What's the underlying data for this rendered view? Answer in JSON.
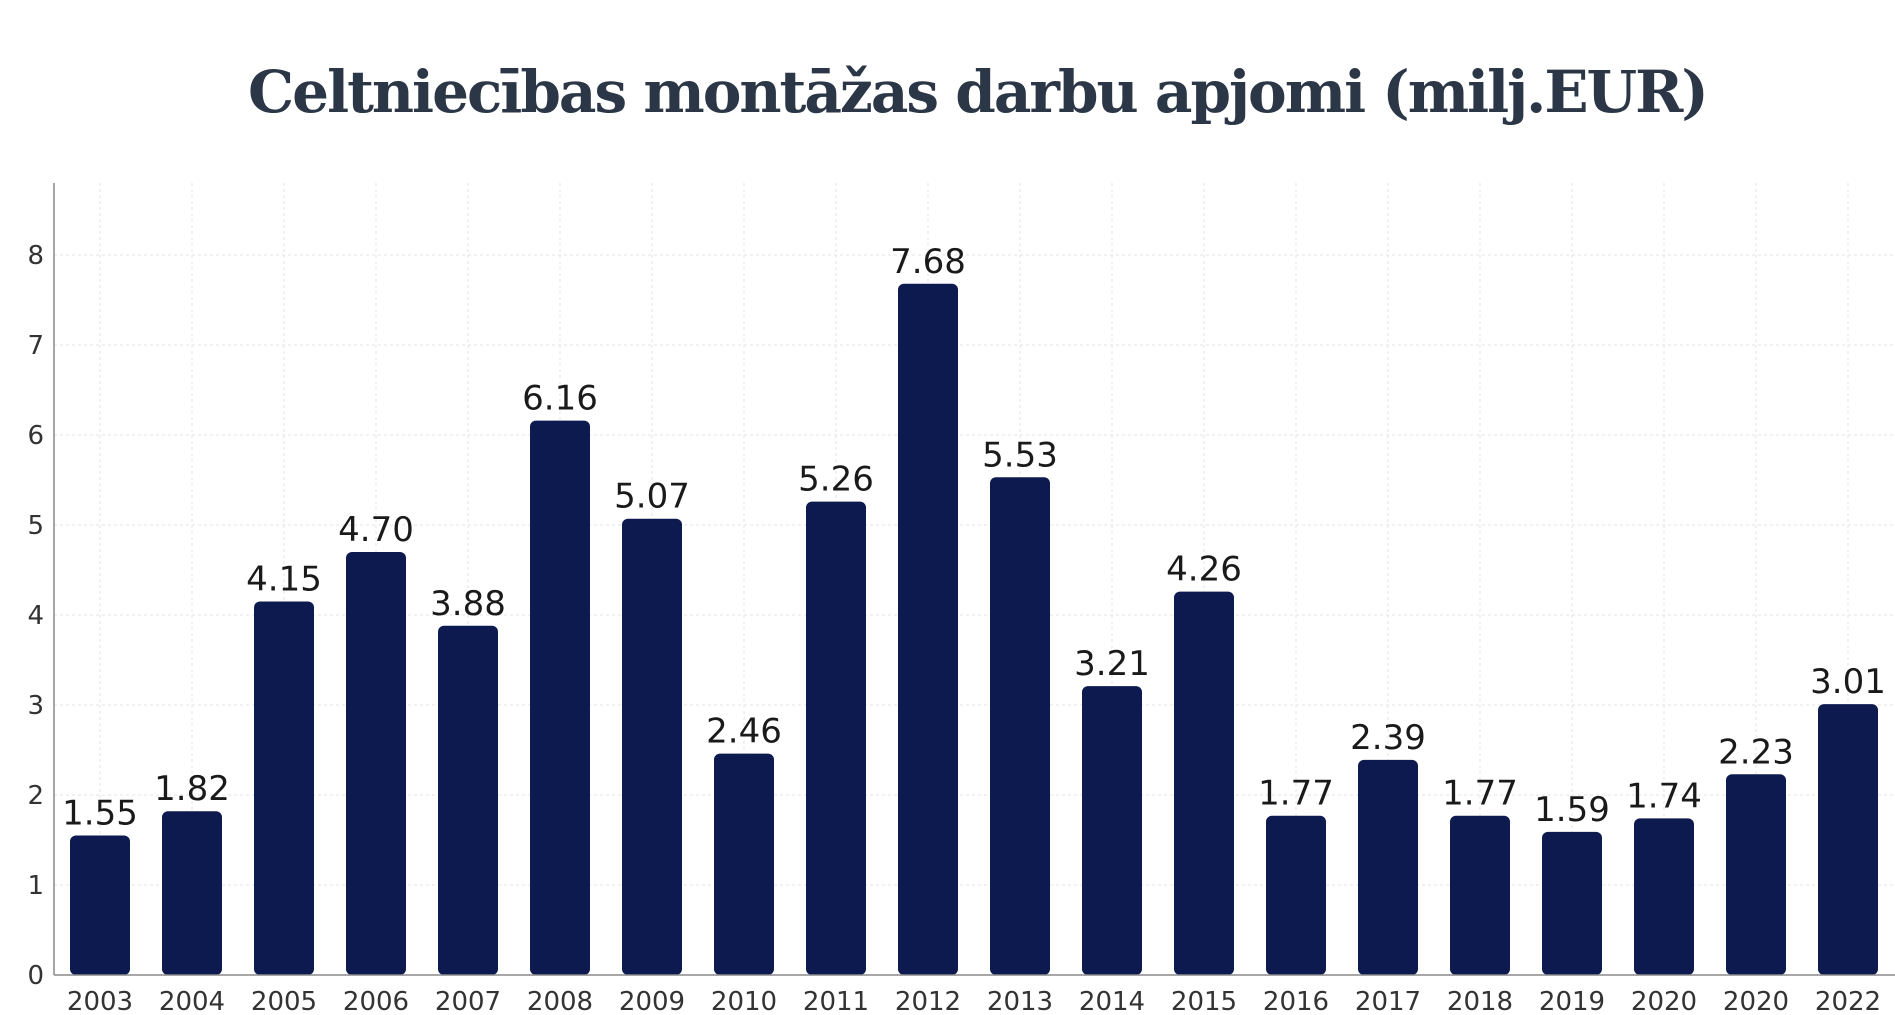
{
  "chart_data": {
    "type": "bar",
    "title": "Celtniecības montāžas darbu apjomi (milj.EUR)",
    "xlabel": "",
    "ylabel": "",
    "categories": [
      "2003",
      "2004",
      "2005",
      "2006",
      "2007",
      "2008",
      "2009",
      "2010",
      "2011",
      "2012",
      "2013",
      "2014",
      "2015",
      "2016",
      "2017",
      "2018",
      "2019",
      "2020",
      "2020",
      "2022"
    ],
    "values": [
      1.55,
      1.82,
      4.15,
      4.7,
      3.88,
      6.16,
      5.07,
      2.46,
      5.26,
      7.68,
      5.53,
      3.21,
      4.26,
      1.77,
      2.39,
      1.77,
      1.59,
      1.74,
      2.23,
      3.01
    ],
    "data_labels": [
      "1.55",
      "1.82",
      "4.15",
      "4.70",
      "3.88",
      "6.16",
      "5.07",
      "2.46",
      "5.26",
      "7.68",
      "5.53",
      "3.21",
      "4.26",
      "1.77",
      "2.39",
      "1.77",
      "1.59",
      "1.74",
      "2.23",
      "3.01"
    ],
    "yticks": [
      0,
      1,
      2,
      3,
      4,
      5,
      6,
      7,
      8
    ],
    "ylim": [
      0,
      8.8
    ],
    "grid": true,
    "legend": "none",
    "colors": {
      "bar": "#0d1a4f",
      "title": "#2b3646",
      "grid": "#e3e3e3"
    }
  }
}
